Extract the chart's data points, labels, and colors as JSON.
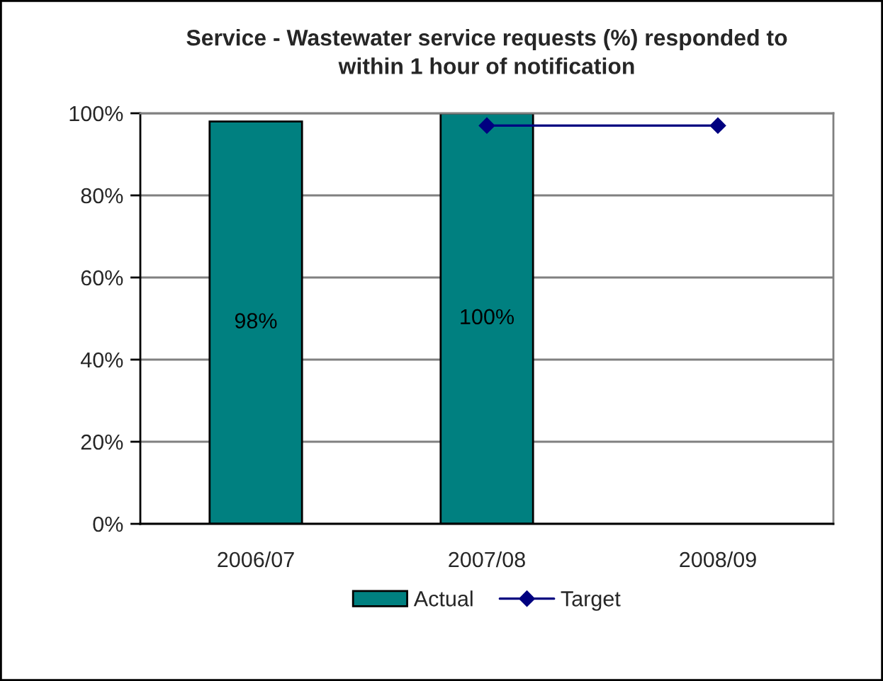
{
  "chart_data": {
    "type": "bar",
    "title": "Service - Wastewater service requests (%) responded to\nwithin 1 hour of notification",
    "categories": [
      "2006/07",
      "2007/08",
      "2008/09"
    ],
    "series": [
      {
        "name": "Actual",
        "color": "#008080",
        "values": [
          98,
          100,
          null
        ],
        "value_labels": [
          "98%",
          "100%",
          null
        ]
      },
      {
        "name": "Target",
        "type": "line",
        "color": "#000080",
        "marker": "diamond",
        "values": [
          null,
          97,
          97
        ]
      }
    ],
    "ylim": [
      0,
      100
    ],
    "yticks": [
      {
        "value": 0,
        "label": "0%"
      },
      {
        "value": 20,
        "label": "20%"
      },
      {
        "value": 40,
        "label": "40%"
      },
      {
        "value": 60,
        "label": "60%"
      },
      {
        "value": 80,
        "label": "80%"
      },
      {
        "value": 100,
        "label": "100%"
      }
    ],
    "grid": "y",
    "legend": "bottom"
  }
}
